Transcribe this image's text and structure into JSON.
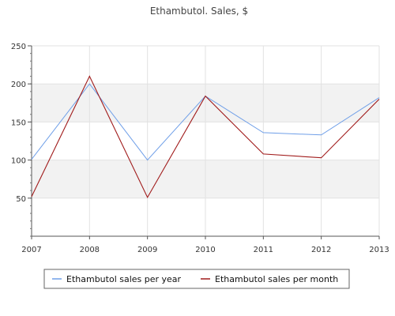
{
  "chart_data": {
    "type": "line",
    "title": "Ethambutol. Sales, $",
    "xlabel": "",
    "ylabel": "",
    "categories": [
      "2007",
      "2008",
      "2009",
      "2010",
      "2011",
      "2012",
      "2013"
    ],
    "ylim": [
      0,
      250
    ],
    "yticks": [
      50,
      100,
      150,
      200,
      250
    ],
    "grid": true,
    "legend_position": "bottom",
    "series": [
      {
        "name": "Ethambutol sales per year",
        "color": "#6f9fe8",
        "values": [
          101,
          200,
          100,
          184,
          136,
          133,
          182
        ]
      },
      {
        "name": "Ethambutol sales per month",
        "color": "#a01a1a",
        "values": [
          52,
          210,
          51,
          184,
          108,
          103,
          180
        ]
      }
    ]
  }
}
